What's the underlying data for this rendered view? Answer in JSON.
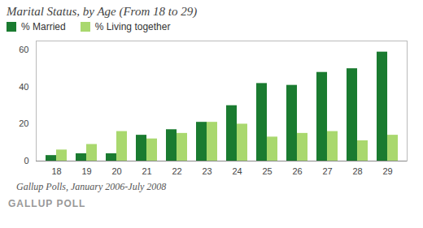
{
  "chart_data": {
    "type": "bar",
    "title": "Marital Status, by Age (From 18 to 29)",
    "annotations": [
      "Gallup Polls, January 2006-July 2008",
      "GALLUP POLL"
    ],
    "categories": [
      18,
      19,
      20,
      21,
      22,
      23,
      24,
      25,
      26,
      27,
      28,
      29
    ],
    "series": [
      {
        "name": "% Married",
        "color": "#1a7b30",
        "values": [
          3,
          4,
          4,
          14,
          17,
          21,
          30,
          42,
          41,
          48,
          50,
          59
        ]
      },
      {
        "name": "% Living together",
        "color": "#a9d86e",
        "values": [
          6,
          9,
          16,
          12,
          15,
          21,
          20,
          13,
          15,
          16,
          11,
          14
        ]
      }
    ],
    "ylim": [
      0,
      65
    ],
    "yticks": [
      0,
      20,
      40,
      60
    ],
    "grid": false,
    "legend": "top"
  }
}
